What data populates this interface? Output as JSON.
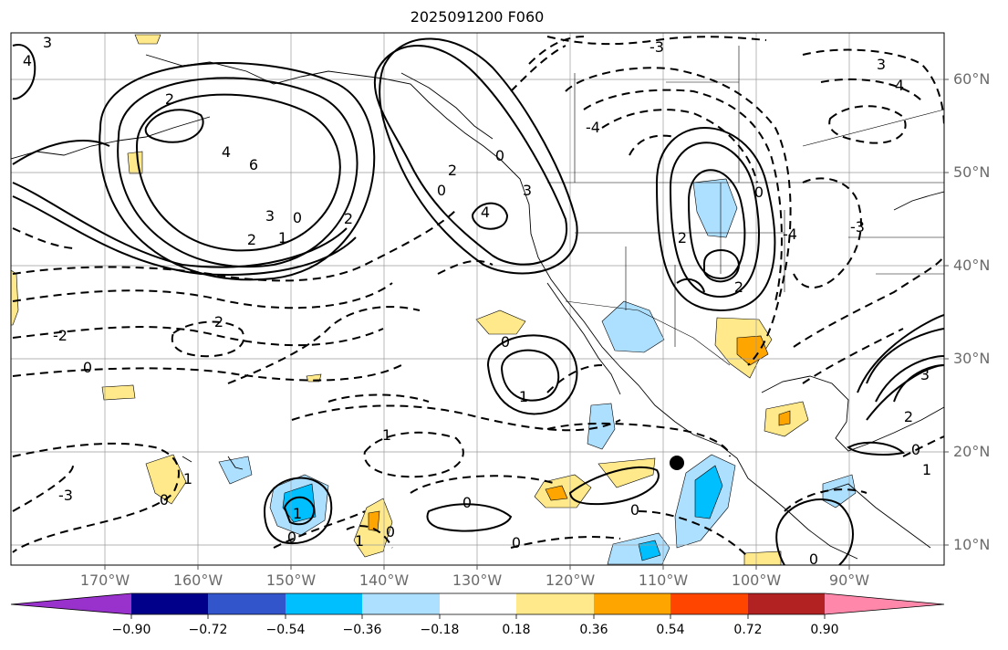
{
  "title": "2025091200 F060",
  "lat_labels": [
    "60°N",
    "50°N",
    "40°N",
    "30°N",
    "20°N",
    "10°N"
  ],
  "lon_labels": [
    "170°W",
    "160°W",
    "150°W",
    "140°W",
    "130°W",
    "120°W",
    "110°W",
    "100°W",
    "90°W"
  ],
  "colorbar": {
    "ticks": [
      "−0.90",
      "−0.72",
      "−0.54",
      "−0.36",
      "−0.18",
      "0.18",
      "0.36",
      "0.54",
      "0.72",
      "0.90"
    ],
    "colors": [
      "#9932CC",
      "#00008B",
      "#3355CC",
      "#00BFFF",
      "#ADDFFF",
      "#FFFFFF",
      "#FFE98A",
      "#FFA500",
      "#FF4500",
      "#B22222",
      "#FF88AA"
    ]
  },
  "contour_labels": [
    "3",
    "4",
    "2",
    "6",
    "4",
    "3",
    "2",
    "0",
    "1",
    "2",
    "0",
    "2",
    "0",
    "3",
    "4",
    "-2",
    "-3",
    "-4",
    "3",
    "2",
    "0",
    "4",
    "2",
    "0",
    "1",
    "0",
    "1",
    "0",
    "1",
    "0",
    "0",
    "0",
    "3",
    "2",
    "0",
    "0",
    "2",
    "-4",
    "-3",
    "1",
    "-3",
    "0",
    "1",
    "0",
    "1"
  ],
  "marker": "black-dot"
}
